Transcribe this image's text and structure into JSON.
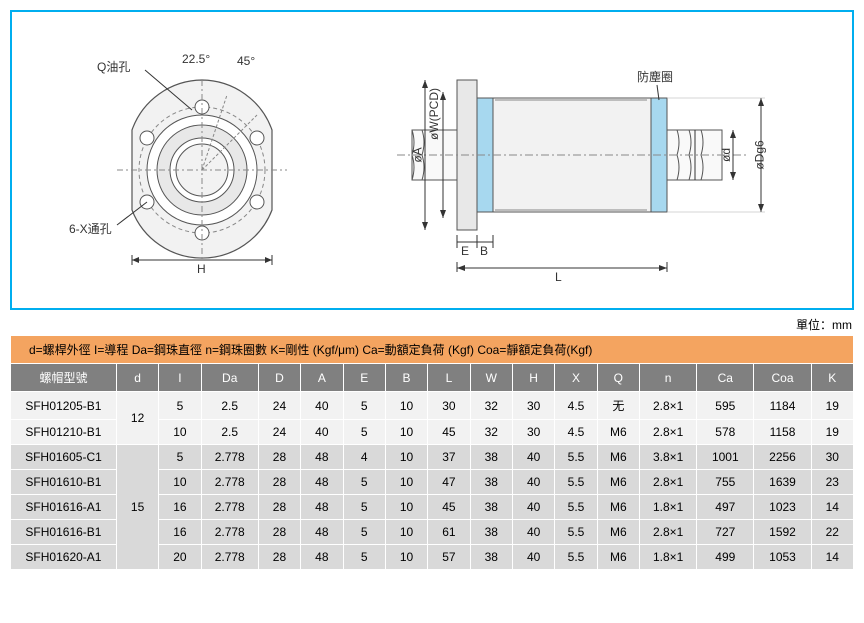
{
  "diagram": {
    "left": {
      "labels": {
        "q_oil": "Q油孔",
        "angle1": "22.5°",
        "angle2": "45°",
        "hole": "6-X通孔",
        "dim_h": "H"
      }
    },
    "right": {
      "labels": {
        "dust": "防塵圈",
        "dim_a": "øA",
        "dim_w": "øW(PCD)",
        "dim_d": "ød",
        "dim_dg": "øDg6",
        "dim_e": "E",
        "dim_b": "B",
        "dim_l": "L"
      }
    }
  },
  "unit": "單位：mm",
  "legend": "d=螺桿外徑 I=導程 Da=鋼珠直徑 n=鋼珠圈數 K=剛性 (Kgf/μm) Ca=動額定負荷 (Kgf) Coa=靜額定負荷(Kgf)",
  "columns": [
    "螺帽型號",
    "d",
    "I",
    "Da",
    "D",
    "A",
    "E",
    "B",
    "L",
    "W",
    "H",
    "X",
    "Q",
    "n",
    "Ca",
    "Coa",
    "K"
  ],
  "groups": [
    {
      "d": "12",
      "shade": "row-light",
      "rows": [
        {
          "model": "SFH01205-B1",
          "v": [
            "5",
            "2.5",
            "24",
            "40",
            "5",
            "10",
            "30",
            "32",
            "30",
            "4.5",
            "无",
            "2.8×1",
            "595",
            "1184",
            "19"
          ]
        },
        {
          "model": "SFH01210-B1",
          "v": [
            "10",
            "2.5",
            "24",
            "40",
            "5",
            "10",
            "45",
            "32",
            "30",
            "4.5",
            "M6",
            "2.8×1",
            "578",
            "1158",
            "19"
          ]
        }
      ]
    },
    {
      "d": "15",
      "shade": "row-dark",
      "rows": [
        {
          "model": "SFH01605-C1",
          "v": [
            "5",
            "2.778",
            "28",
            "48",
            "4",
            "10",
            "37",
            "38",
            "40",
            "5.5",
            "M6",
            "3.8×1",
            "1001",
            "2256",
            "30"
          ]
        },
        {
          "model": "SFH01610-B1",
          "v": [
            "10",
            "2.778",
            "28",
            "48",
            "5",
            "10",
            "47",
            "38",
            "40",
            "5.5",
            "M6",
            "2.8×1",
            "755",
            "1639",
            "23"
          ]
        },
        {
          "model": "SFH01616-A1",
          "v": [
            "16",
            "2.778",
            "28",
            "48",
            "5",
            "10",
            "45",
            "38",
            "40",
            "5.5",
            "M6",
            "1.8×1",
            "497",
            "1023",
            "14"
          ]
        },
        {
          "model": "SFH01616-B1",
          "v": [
            "16",
            "2.778",
            "28",
            "48",
            "5",
            "10",
            "61",
            "38",
            "40",
            "5.5",
            "M6",
            "2.8×1",
            "727",
            "1592",
            "22"
          ]
        },
        {
          "model": "SFH01620-A1",
          "v": [
            "20",
            "2.778",
            "28",
            "48",
            "5",
            "10",
            "57",
            "38",
            "40",
            "5.5",
            "M6",
            "1.8×1",
            "499",
            "1053",
            "14"
          ]
        }
      ]
    }
  ]
}
